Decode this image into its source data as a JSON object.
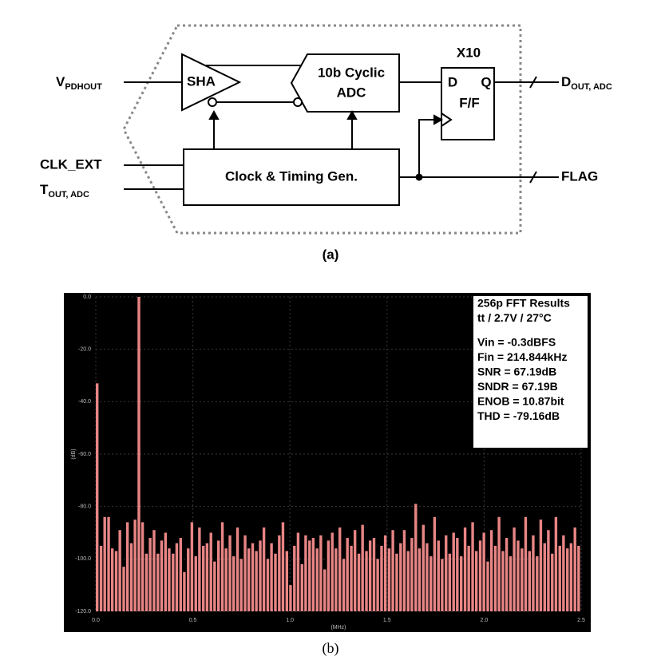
{
  "diagram": {
    "caption": "(a)",
    "inputs": [
      {
        "main": "V",
        "sub": "PDHOUT"
      },
      {
        "main": "CLK_EXT"
      },
      {
        "main": "T",
        "sub": "OUT, ADC"
      }
    ],
    "blocks": {
      "sha": "SHA",
      "adc": [
        "10b Cyclic",
        "ADC"
      ],
      "ff_count": "X10",
      "ff_d": "D",
      "ff_q": "Q",
      "ff_label": "F/F",
      "clock": "Clock & Timing Gen."
    },
    "outputs": [
      {
        "main": "D",
        "sub": "OUT, ADC"
      },
      {
        "main": "FLAG"
      }
    ]
  },
  "chart_data": {
    "type": "bar",
    "caption": "(b)",
    "xlabel": "(MHz)",
    "ylabel": "(dB)",
    "annotations": [
      "256p FFT Results",
      "tt / 2.7V / 27°C",
      "Vin = -0.3dBFS",
      "Fin = 214.844kHz",
      "SNR = 67.19dB",
      "SNDR = 67.19B",
      "ENOB = 10.87bit",
      "THD = -79.16dB"
    ],
    "color": "#e88585",
    "grid": true,
    "xlim": [
      0,
      2.5
    ],
    "ylim": [
      -120,
      0
    ],
    "xticks": [
      {
        "value": 0,
        "label": "0.0"
      },
      0.5,
      {
        "value": 1,
        "label": "1.0"
      },
      1.5,
      {
        "value": 2,
        "label": "2.0"
      },
      2.5
    ],
    "yticks": [
      {
        "value": 0,
        "label": "0.0"
      },
      {
        "value": -20,
        "label": "-20.0"
      },
      {
        "value": -40,
        "label": "-40.0"
      },
      {
        "value": -60,
        "label": "-60.0"
      },
      {
        "value": -80,
        "label": "-80.0"
      },
      {
        "value": -100,
        "label": "-100.0"
      },
      {
        "value": -120,
        "label": "-120.0"
      }
    ],
    "x": [
      0,
      0.02,
      0.039,
      0.059,
      0.078,
      0.098,
      0.117,
      0.137,
      0.156,
      0.176,
      0.195,
      0.215,
      0.234,
      0.254,
      0.273,
      0.293,
      0.313,
      0.332,
      0.352,
      0.371,
      0.391,
      0.41,
      0.43,
      0.449,
      0.469,
      0.488,
      0.508,
      0.527,
      0.547,
      0.566,
      0.586,
      0.605,
      0.625,
      0.645,
      0.664,
      0.684,
      0.703,
      0.723,
      0.742,
      0.762,
      0.781,
      0.801,
      0.82,
      0.84,
      0.859,
      0.879,
      0.898,
      0.918,
      0.938,
      0.957,
      0.977,
      0.996,
      1.016,
      1.035,
      1.055,
      1.074,
      1.094,
      1.113,
      1.133,
      1.152,
      1.172,
      1.191,
      1.211,
      1.23,
      1.25,
      1.27,
      1.289,
      1.309,
      1.328,
      1.348,
      1.367,
      1.387,
      1.406,
      1.426,
      1.445,
      1.465,
      1.484,
      1.504,
      1.523,
      1.543,
      1.563,
      1.582,
      1.602,
      1.621,
      1.641,
      1.66,
      1.68,
      1.699,
      1.719,
      1.738,
      1.758,
      1.777,
      1.797,
      1.816,
      1.836,
      1.855,
      1.875,
      1.895,
      1.914,
      1.934,
      1.953,
      1.973,
      1.992,
      2.012,
      2.031,
      2.051,
      2.07,
      2.09,
      2.109,
      2.129,
      2.148,
      2.168,
      2.188,
      2.207,
      2.227,
      2.246,
      2.266,
      2.285,
      2.305,
      2.324,
      2.344,
      2.363,
      2.383,
      2.402,
      2.422,
      2.441,
      2.461,
      2.48
    ],
    "values": [
      -33,
      -95,
      -84,
      -84,
      -96,
      -97,
      -89,
      -103,
      -86,
      -94,
      -85,
      0,
      -86,
      -98,
      -92,
      -89,
      -98,
      -93,
      -90,
      -96,
      -98,
      -94,
      -92,
      -105,
      -96,
      -86,
      -99,
      -88,
      -95,
      -94,
      -90,
      -101,
      -93,
      -86,
      -96,
      -91,
      -99,
      -88,
      -100,
      -91,
      -96,
      -94,
      -97,
      -93,
      -88,
      -100,
      -94,
      -98,
      -91,
      -86,
      -97,
      -110,
      -95,
      -90,
      -102,
      -91,
      -93,
      -92,
      -96,
      -91,
      -104,
      -93,
      -90,
      -96,
      -88,
      -100,
      -92,
      -95,
      -89,
      -98,
      -87,
      -97,
      -93,
      -92,
      -100,
      -95,
      -91,
      -96,
      -89,
      -98,
      -94,
      -89,
      -97,
      -92,
      -79,
      -96,
      -87,
      -94,
      -99,
      -84,
      -93,
      -100,
      -91,
      -98,
      -90,
      -92,
      -99,
      -88,
      -95,
      -86,
      -97,
      -93,
      -90,
      -101,
      -89,
      -95,
      -84,
      -97,
      -92,
      -99,
      -88,
      -93,
      -96,
      -84,
      -97,
      -91,
      -99,
      -85,
      -94,
      -89,
      -98,
      -84,
      -95,
      -91,
      -96,
      -94,
      -88,
      -95
    ]
  }
}
